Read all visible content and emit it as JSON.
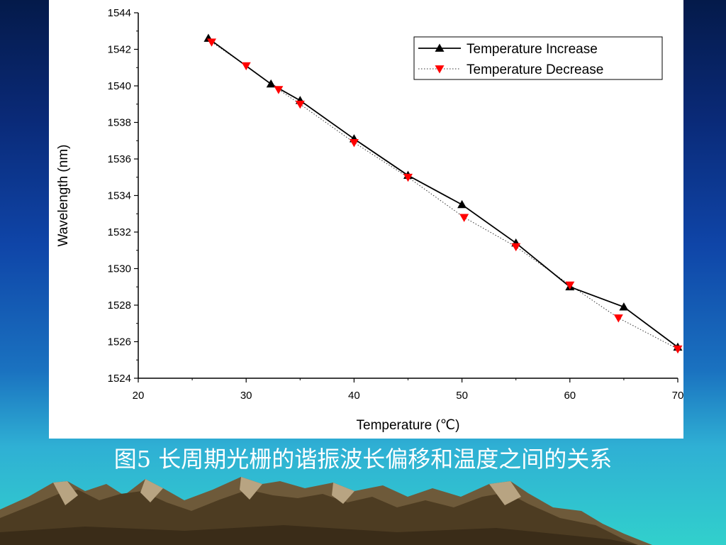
{
  "caption": "图5 长周期光栅的谐振波长偏移和温度之间的关系",
  "colors": {
    "series_increase": "#000000",
    "series_decrease": "#ff0000",
    "panel_background": "#ffffff"
  },
  "chart_data": {
    "type": "line",
    "xlabel": "Temperature (℃)",
    "ylabel": "Wavelength (nm)",
    "xlim": [
      20,
      70
    ],
    "ylim": [
      1524,
      1544
    ],
    "xticks": [
      "20",
      "30",
      "40",
      "50",
      "60",
      "70"
    ],
    "yticks": [
      "1524",
      "1526",
      "1528",
      "1530",
      "1532",
      "1534",
      "1536",
      "1538",
      "1540",
      "1542",
      "1544"
    ],
    "legend_position": "top-right",
    "grid": false,
    "series": [
      {
        "name": "Temperature Increase",
        "marker": "triangle-up",
        "line": "solid",
        "x": [
          26.5,
          32.3,
          35.0,
          40.0,
          45.0,
          50.0,
          55.0,
          60.0,
          65.0,
          70.0
        ],
        "y": [
          1542.6,
          1540.1,
          1539.2,
          1537.1,
          1535.1,
          1533.5,
          1531.4,
          1529.0,
          1527.9,
          1525.7
        ]
      },
      {
        "name": "Temperature Decrease",
        "marker": "triangle-down",
        "line": "dotted",
        "x": [
          26.8,
          30.0,
          33.0,
          35.0,
          40.0,
          45.0,
          50.2,
          55.0,
          60.0,
          64.5,
          70.0
        ],
        "y": [
          1542.4,
          1541.1,
          1539.8,
          1539.0,
          1536.9,
          1535.0,
          1532.8,
          1531.2,
          1529.1,
          1527.3,
          1525.6
        ]
      }
    ]
  }
}
